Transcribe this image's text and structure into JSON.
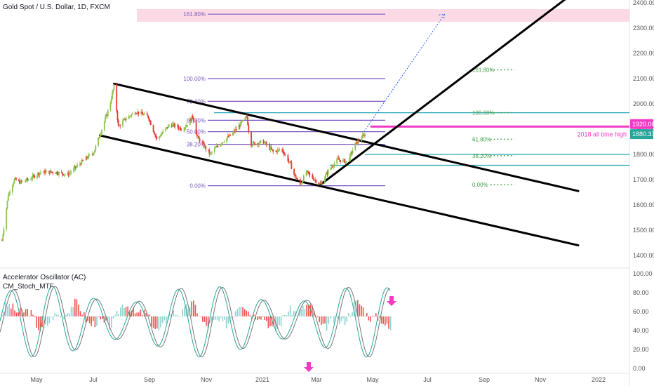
{
  "chart_data": {
    "type": "candlestick",
    "title": "Gold Spot / U.S. Dollar, 1D, FXCM",
    "y_axis": {
      "ticks": [
        "2400.00",
        "2300.00",
        "2200.00",
        "2100.00",
        "2000.00",
        "1900.00",
        "1800.00",
        "1700.00",
        "1600.00",
        "1500.00",
        "1400.00"
      ],
      "range": [
        1380,
        2400
      ],
      "price_labels": [
        {
          "text": "1920.00",
          "value": 1920,
          "color": "#f23bc4"
        },
        {
          "text": "1880.37",
          "value": 1880.37,
          "color": "#26a69a"
        }
      ]
    },
    "x_axis": {
      "ticks": [
        "May",
        "Jul",
        "Sep",
        "Nov",
        "2021",
        "Mar",
        "May",
        "Jul",
        "Sep",
        "Nov",
        "2022"
      ]
    },
    "price_path": [
      [
        "2020-04-01",
        1460
      ],
      [
        "2020-04-08",
        1640
      ],
      [
        "2020-04-15",
        1700
      ],
      [
        "2020-04-22",
        1690
      ],
      [
        "2020-05-01",
        1700
      ],
      [
        "2020-05-15",
        1730
      ],
      [
        "2020-06-01",
        1730
      ],
      [
        "2020-06-15",
        1720
      ],
      [
        "2020-07-01",
        1770
      ],
      [
        "2020-07-15",
        1810
      ],
      [
        "2020-07-22",
        1880
      ],
      [
        "2020-08-01",
        1980
      ],
      [
        "2020-08-07",
        2070
      ],
      [
        "2020-08-12",
        1910
      ],
      [
        "2020-08-20",
        1940
      ],
      [
        "2020-09-01",
        1970
      ],
      [
        "2020-09-15",
        1950
      ],
      [
        "2020-09-25",
        1860
      ],
      [
        "2020-10-10",
        1920
      ],
      [
        "2020-10-25",
        1900
      ],
      [
        "2020-11-05",
        1950
      ],
      [
        "2020-11-10",
        1870
      ],
      [
        "2020-11-25",
        1800
      ],
      [
        "2020-12-05",
        1840
      ],
      [
        "2020-12-20",
        1880
      ],
      [
        "2021-01-06",
        1950
      ],
      [
        "2021-01-10",
        1840
      ],
      [
        "2021-01-25",
        1850
      ],
      [
        "2021-02-05",
        1810
      ],
      [
        "2021-02-15",
        1820
      ],
      [
        "2021-02-25",
        1760
      ],
      [
        "2021-03-01",
        1720
      ],
      [
        "2021-03-08",
        1680
      ],
      [
        "2021-03-15",
        1730
      ],
      [
        "2021-03-31",
        1680
      ],
      [
        "2021-04-10",
        1740
      ],
      [
        "2021-04-20",
        1780
      ],
      [
        "2021-05-01",
        1770
      ],
      [
        "2021-05-10",
        1840
      ],
      [
        "2021-05-18",
        1870
      ],
      [
        "2021-05-21",
        1880.37
      ]
    ],
    "channel_lines": [
      {
        "from": [
          "2020-08-07",
          2080
        ],
        "to": [
          "2022-01-20",
          1655
        ]
      },
      {
        "from": [
          "2020-07-22",
          1875
        ],
        "to": [
          "2022-01-20",
          1440
        ]
      },
      {
        "from": [
          "2021-03-31",
          1680
        ],
        "to": [
          "2022-01-15",
          2440
        ]
      }
    ],
    "fib_retracement": {
      "levels": [
        {
          "label": "161.80%",
          "value": 2355
        },
        {
          "label": "100.00%",
          "value": 2100
        },
        {
          "label": "78.60%",
          "value": 2010
        },
        {
          "label": "61.80%",
          "value": 1935
        },
        {
          "label": "50.00%",
          "value": 1890
        },
        {
          "label": "38.20%",
          "value": 1840
        },
        {
          "label": "0.00%",
          "value": 1676
        }
      ]
    },
    "fib_extension": {
      "levels": [
        {
          "label": "161.80%",
          "value": 2135
        },
        {
          "label": "100.00%",
          "value": 1965
        },
        {
          "label": "61.80%",
          "value": 1860
        },
        {
          "label": "38.20%",
          "value": 1795
        },
        {
          "label": "0.00%",
          "value": 1680
        }
      ]
    },
    "annotations": [
      {
        "text": "2018 all time high",
        "value": 1910,
        "color": "#f23bc4"
      }
    ],
    "indicator": {
      "names": [
        "Accelerator Oscillator (AC)",
        "CM_Stoch_MTF"
      ],
      "y_ticks": [
        "100.00",
        "80.00",
        "60.00",
        "40.00",
        "20.00",
        "0.00"
      ],
      "range": [
        0,
        100
      ]
    }
  }
}
